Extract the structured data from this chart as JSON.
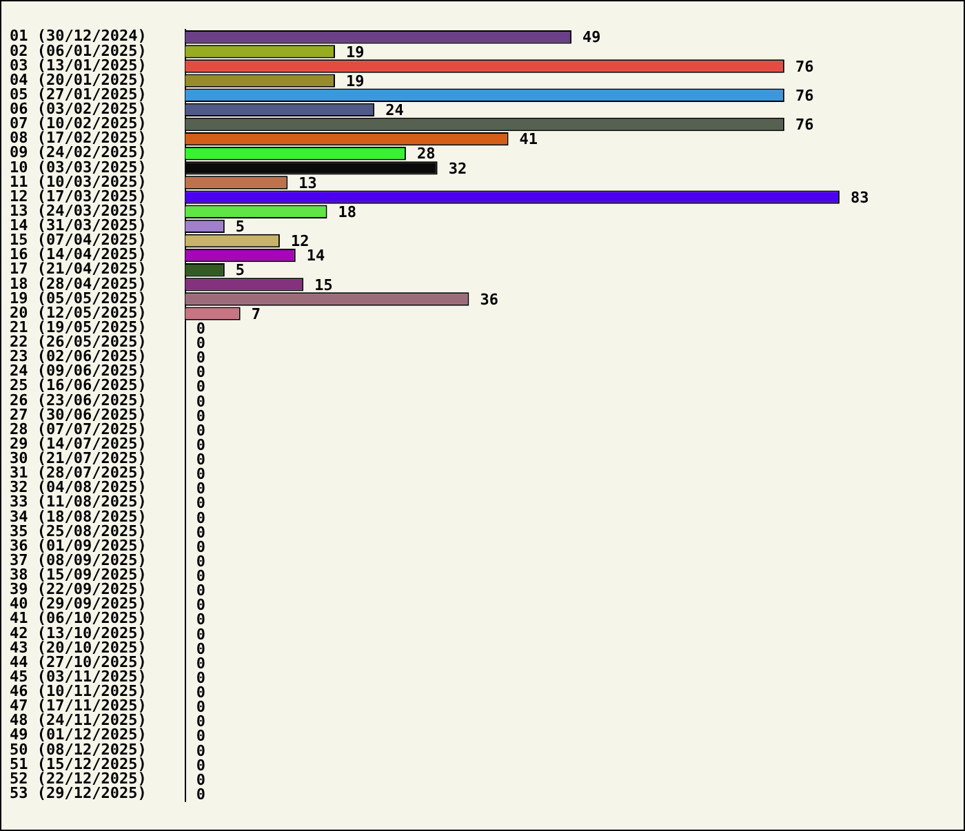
{
  "chart_data": {
    "type": "bar",
    "orientation": "horizontal",
    "data_labels": true,
    "grid": false,
    "legend": false,
    "categories": [
      "01 (30/12/2024)",
      "02 (06/01/2025)",
      "03 (13/01/2025)",
      "04 (20/01/2025)",
      "05 (27/01/2025)",
      "06 (03/02/2025)",
      "07 (10/02/2025)",
      "08 (17/02/2025)",
      "09 (24/02/2025)",
      "10 (03/03/2025)",
      "11 (10/03/2025)",
      "12 (17/03/2025)",
      "13 (24/03/2025)",
      "14 (31/03/2025)",
      "15 (07/04/2025)",
      "16 (14/04/2025)",
      "17 (21/04/2025)",
      "18 (28/04/2025)",
      "19 (05/05/2025)",
      "20 (12/05/2025)",
      "21 (19/05/2025)",
      "22 (26/05/2025)",
      "23 (02/06/2025)",
      "24 (09/06/2025)",
      "25 (16/06/2025)",
      "26 (23/06/2025)",
      "27 (30/06/2025)",
      "28 (07/07/2025)",
      "29 (14/07/2025)",
      "30 (21/07/2025)",
      "31 (28/07/2025)",
      "32 (04/08/2025)",
      "33 (11/08/2025)",
      "34 (18/08/2025)",
      "35 (25/08/2025)",
      "36 (01/09/2025)",
      "37 (08/09/2025)",
      "38 (15/09/2025)",
      "39 (22/09/2025)",
      "40 (29/09/2025)",
      "41 (06/10/2025)",
      "42 (13/10/2025)",
      "43 (20/10/2025)",
      "44 (27/10/2025)",
      "45 (03/11/2025)",
      "46 (10/11/2025)",
      "47 (17/11/2025)",
      "48 (24/11/2025)",
      "49 (01/12/2025)",
      "50 (08/12/2025)",
      "51 (15/12/2025)",
      "52 (22/12/2025)",
      "53 (29/12/2025)"
    ],
    "values": [
      49,
      19,
      76,
      19,
      76,
      24,
      76,
      41,
      28,
      32,
      13,
      83,
      18,
      5,
      12,
      14,
      5,
      15,
      36,
      7,
      0,
      0,
      0,
      0,
      0,
      0,
      0,
      0,
      0,
      0,
      0,
      0,
      0,
      0,
      0,
      0,
      0,
      0,
      0,
      0,
      0,
      0,
      0,
      0,
      0,
      0,
      0,
      0,
      0,
      0,
      0,
      0,
      0
    ],
    "colors": [
      "#6a4186",
      "#97ac1e",
      "#e24d42",
      "#978b2a",
      "#3a98e1",
      "#4e5b8a",
      "#566152",
      "#d45e18",
      "#36f230",
      "#0a0a0a",
      "#bf724a",
      "#4b00f0",
      "#5fe645",
      "#a080cc",
      "#c7b46a",
      "#a705b8",
      "#335a22",
      "#84317e",
      "#9c6c7a",
      "#c87483",
      "#000000",
      "#000000",
      "#000000",
      "#000000",
      "#000000",
      "#000000",
      "#000000",
      "#000000",
      "#000000",
      "#000000",
      "#000000",
      "#000000",
      "#000000",
      "#000000",
      "#000000",
      "#000000",
      "#000000",
      "#000000",
      "#000000",
      "#000000",
      "#000000",
      "#000000",
      "#000000",
      "#000000",
      "#000000",
      "#000000",
      "#000000",
      "#000000",
      "#000000",
      "#000000",
      "#000000",
      "#000000",
      "#000000"
    ]
  }
}
